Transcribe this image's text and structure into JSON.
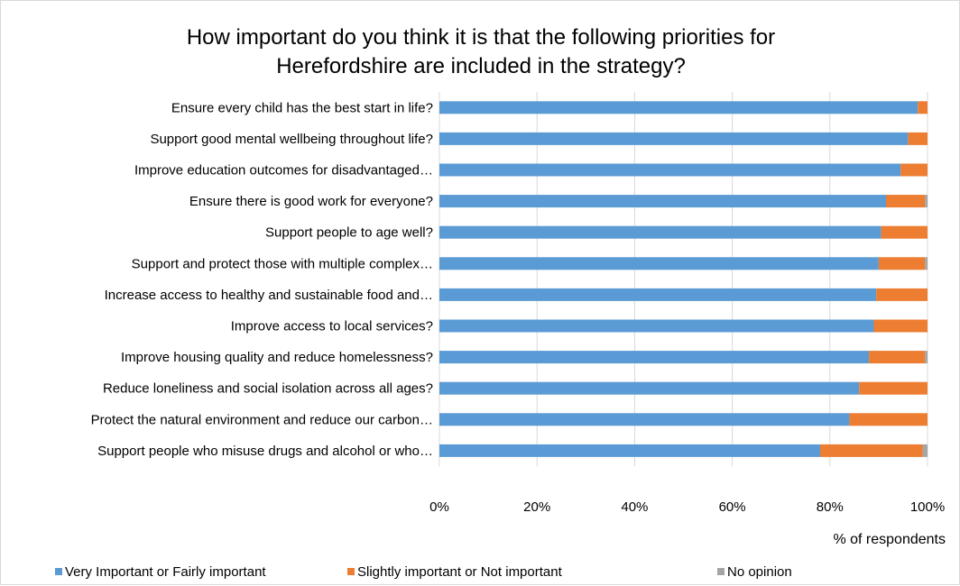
{
  "chart_data": {
    "type": "bar",
    "orientation": "horizontal",
    "stacked": "percent",
    "title_lines": [
      "How important do you think it is that the following priorities for",
      "Herefordshire are included in the strategy?"
    ],
    "xlabel": "% of respondents",
    "ylabel": "",
    "xlim": [
      0,
      100
    ],
    "x_ticks": [
      "0%",
      "20%",
      "40%",
      "60%",
      "80%",
      "100%"
    ],
    "grid": "vertical",
    "legend_position": "bottom",
    "categories": [
      "Ensure every child has the best start in life?",
      "Support good mental wellbeing throughout life?",
      "Improve education outcomes for disadvantaged…",
      "Ensure there is good work for everyone?",
      "Support people to age well?",
      "Support and protect those with multiple complex…",
      "Increase access to healthy and sustainable food and…",
      "Improve access to local services?",
      "Improve housing quality and reduce homelessness?",
      "Reduce loneliness and social isolation across all ages?",
      "Protect the natural environment and reduce our carbon…",
      "Support people who misuse drugs and alcohol or who…"
    ],
    "series": [
      {
        "name": "Very Important or Fairly important",
        "color": "#5b9bd5",
        "values": [
          98,
          96,
          94.5,
          91.5,
          90.5,
          90,
          89.5,
          89,
          88,
          86,
          84,
          78
        ]
      },
      {
        "name": "Slightly important or Not important",
        "color": "#ed7d31",
        "values": [
          2,
          4,
          5.5,
          8,
          9.5,
          9.5,
          10.5,
          11,
          11.5,
          14,
          16,
          21
        ]
      },
      {
        "name": "No opinion",
        "color": "#a5a5a5",
        "values": [
          0,
          0,
          0,
          0.5,
          0,
          0.5,
          0,
          0,
          0.5,
          0,
          0,
          1
        ]
      }
    ]
  }
}
